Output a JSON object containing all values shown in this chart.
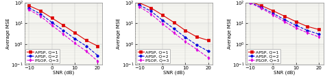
{
  "snr": [
    -10,
    -5,
    0,
    5,
    10,
    15,
    20
  ],
  "plots": [
    {
      "ylim_log": [
        -1,
        2
      ],
      "yticks": [
        0.1,
        1,
        10,
        100
      ],
      "apsp_q1": [
        70,
        40,
        18,
        8,
        3.5,
        1.5,
        0.8
      ],
      "apsp_q2": [
        55,
        28,
        11,
        4.5,
        1.8,
        0.8,
        0.28
      ],
      "psop_q3": [
        45,
        22,
        8,
        3.0,
        1.1,
        0.45,
        0.15
      ]
    },
    {
      "ylim_log": [
        -1,
        2
      ],
      "yticks": [
        0.1,
        1,
        10,
        100
      ],
      "apsp_q1": [
        95,
        55,
        25,
        11,
        4.5,
        2.2,
        1.5
      ],
      "apsp_q2": [
        75,
        38,
        14,
        5.5,
        2.1,
        0.9,
        0.45
      ],
      "psop_q3": [
        62,
        28,
        9.5,
        3.5,
        1.3,
        0.55,
        0.22
      ]
    },
    {
      "ylim_log": [
        -1,
        2
      ],
      "yticks": [
        0.1,
        1,
        10,
        100
      ],
      "apsp_q1": [
        110,
        70,
        40,
        22,
        12,
        7,
        5
      ],
      "apsp_q2": [
        100,
        58,
        30,
        15,
        8,
        4.5,
        3
      ],
      "psop_q3": [
        95,
        52,
        25,
        12,
        6,
        3.5,
        2.2
      ]
    }
  ],
  "snr_ticks": [
    -10,
    0,
    10,
    20
  ],
  "xlabel": "SNR (dB)",
  "ylabel": "Average MSE",
  "legend": [
    "APSP, Q=1",
    "APSP, Q=2",
    "PSOP, Q=3"
  ],
  "colors": [
    "#dd0000",
    "#0000dd",
    "#dd00dd"
  ],
  "linestyles": [
    "-",
    "--",
    "--"
  ],
  "markers": [
    "s",
    "o",
    "d"
  ],
  "markersizes": [
    2.5,
    2.5,
    2.5
  ],
  "linewidths": [
    0.8,
    0.8,
    0.8
  ],
  "fontsize": 5.0,
  "legend_fontsize": 4.5,
  "bg_color": "#f5f5f0"
}
